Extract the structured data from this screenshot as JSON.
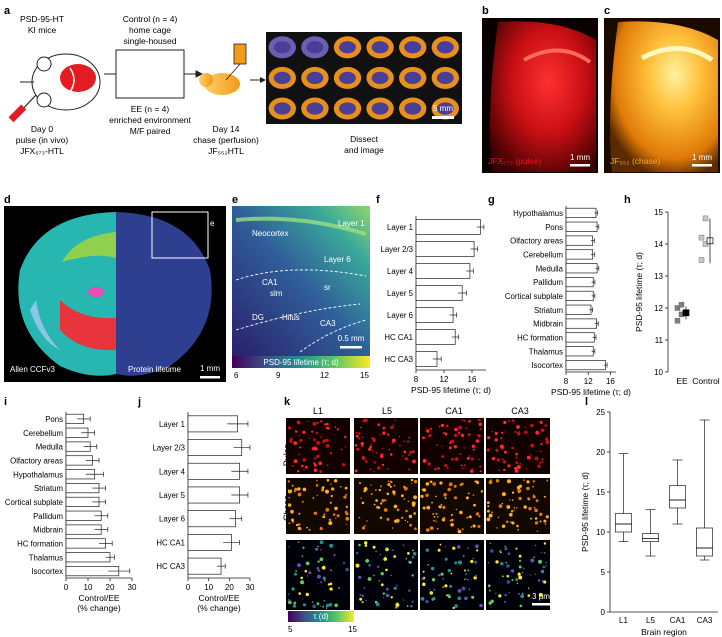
{
  "panels": {
    "a": {
      "label": "a",
      "mice": [
        "PSD-95-HT",
        "KI mice"
      ],
      "day0": [
        "Day 0",
        "pulse (in vivo)",
        "JFX₆₇₃-HTL"
      ],
      "control": [
        "Control (n = 4)",
        "home cage",
        "single-housed"
      ],
      "ee": [
        "EE (n = 4)",
        "enriched environment",
        "M/F paired"
      ],
      "day14": [
        "Day 14",
        "chase (perfusion)",
        "JF₅₅₂HTL"
      ],
      "dissect": [
        "Dissect",
        "and image"
      ],
      "scale": "5 mm"
    },
    "b": {
      "label": "b",
      "caption": "JFX₆₇₃ (pulse)",
      "scale": "1 mm"
    },
    "c": {
      "label": "c",
      "caption": "JF₅₅₂ (chase)",
      "scale": "1 mm"
    },
    "d": {
      "label": "d",
      "left": "Allen CCFv3",
      "right": "Protein lifetime",
      "scale": "1 mm",
      "inset": "e"
    },
    "e": {
      "label": "e",
      "regions": [
        "Layer 1",
        "Neocortex",
        "Layer 6",
        "CA1",
        "sr",
        "slm",
        "DG",
        "Hilus",
        "CA3"
      ],
      "scale": "0.5 mm",
      "colorbar_title": "PSD-95 lifetime (τ; d)",
      "colorbar_ticks": [
        "6",
        "9",
        "12",
        "15"
      ]
    },
    "k": {
      "label": "k",
      "cols": [
        "L1",
        "L5",
        "CA1",
        "CA3"
      ],
      "rows": [
        "Pulse",
        "Chase",
        "τ"
      ],
      "colorbar_title": "τ (d)",
      "colorbar_ticks": [
        "5",
        "15"
      ],
      "scale": "3 μm"
    }
  },
  "chart_data": [
    {
      "id": "f",
      "type": "bar",
      "orientation": "horizontal",
      "categories": [
        "Layer 1",
        "Layer 2/3",
        "Layer 4",
        "Layer 5",
        "Layer 6",
        "HC CA1",
        "HC CA3"
      ],
      "values": [
        17.2,
        16.3,
        15.7,
        14.6,
        13.3,
        13.6,
        11.0
      ],
      "errors": [
        0.5,
        0.5,
        0.5,
        0.6,
        0.5,
        0.5,
        0.6
      ],
      "xlabel": "PSD-95 lifetime (τ; d)",
      "xlim": [
        8,
        18
      ],
      "xticks": [
        "8",
        "12",
        "16"
      ]
    },
    {
      "id": "g",
      "type": "bar",
      "orientation": "horizontal",
      "categories": [
        "Hypothalamus",
        "Pons",
        "Olfactory areas",
        "Cerebellum",
        "Medulla",
        "Pallidum",
        "Cortical subplate",
        "Striatum",
        "Midbrain",
        "HC formation",
        "Thalamus",
        "Isocortex"
      ],
      "values": [
        13.4,
        13.6,
        12.8,
        12.8,
        13.6,
        12.9,
        12.9,
        12.5,
        13.5,
        13.1,
        12.9,
        15.1
      ],
      "errors": [
        0.3,
        0.3,
        0.3,
        0.3,
        0.3,
        0.3,
        0.3,
        0.3,
        0.3,
        0.3,
        0.3,
        0.3
      ],
      "xlabel": "PSD-95 lifetime (τ; d)",
      "xlim": [
        8,
        17
      ],
      "xticks": [
        "8",
        "12",
        "16"
      ]
    },
    {
      "id": "h",
      "type": "scatter",
      "categories": [
        "EE",
        "Control"
      ],
      "ylabel": "PSD-95 lifetime (τ; d)",
      "ylim": [
        10,
        15
      ],
      "yticks": [
        "10",
        "11",
        "12",
        "13",
        "14",
        "15"
      ],
      "series": [
        {
          "name": "EE",
          "points": [
            11.6,
            11.8,
            12.0,
            12.1
          ],
          "mean": 11.85,
          "error": 0.2
        },
        {
          "name": "Control",
          "points": [
            13.5,
            14.0,
            14.2,
            14.8
          ],
          "mean": 14.1,
          "error": 0.7
        }
      ]
    },
    {
      "id": "i",
      "type": "bar",
      "orientation": "horizontal",
      "categories": [
        "Pons",
        "Cerebellum",
        "Medulla",
        "Olfactory areas",
        "Hypothalamus",
        "Striatum",
        "Cortical subplate",
        "Pallidum",
        "Midbrain",
        "HC formation",
        "Thalamus",
        "Isocortex"
      ],
      "values": [
        8,
        10,
        11,
        12,
        13,
        15,
        15,
        16,
        16,
        18,
        20,
        24
      ],
      "errors": [
        3,
        3,
        3,
        3,
        4,
        3,
        3,
        3,
        3,
        3,
        2,
        5
      ],
      "xlabel": "Control/EE",
      "xlabel2": "(% change)",
      "xlim": [
        0,
        30
      ],
      "xticks": [
        "0",
        "10",
        "20",
        "30"
      ]
    },
    {
      "id": "j",
      "type": "bar",
      "orientation": "horizontal",
      "categories": [
        "Layer 1",
        "Layer 2/3",
        "Layer 4",
        "Layer 5",
        "Layer 6",
        "HC CA1",
        "HC CA3"
      ],
      "values": [
        24,
        26,
        25,
        25,
        23,
        21,
        16
      ],
      "errors": [
        5,
        4,
        4,
        4,
        3,
        4,
        2
      ],
      "xlabel": "Control/EE",
      "xlabel2": "(% change)",
      "xlim": [
        0,
        30
      ],
      "xticks": [
        "0",
        "10",
        "20",
        "30"
      ]
    },
    {
      "id": "l",
      "type": "box",
      "categories": [
        "L1",
        "L5",
        "CA1",
        "CA3"
      ],
      "xlabel": "Brain region",
      "ylabel": "PSD-95 lifetime (τ; d)",
      "ylim": [
        0,
        25
      ],
      "yticks": [
        "0",
        "5",
        "10",
        "15",
        "20",
        "25"
      ],
      "boxes": [
        {
          "min": 8.8,
          "q1": 10.0,
          "median": 11.0,
          "q3": 12.3,
          "max": 19.8
        },
        {
          "min": 7.0,
          "q1": 8.8,
          "median": 9.2,
          "q3": 9.8,
          "max": 12.8
        },
        {
          "min": 11.0,
          "q1": 13.0,
          "median": 14.0,
          "q3": 15.8,
          "max": 19.0
        },
        {
          "min": 6.5,
          "q1": 7.0,
          "median": 8.0,
          "q3": 10.5,
          "max": 24.0
        }
      ]
    }
  ],
  "colors": {
    "pulse": "#e8141c",
    "chase": "#f5a623",
    "bar_fill": "#ffffff",
    "ee_marker": "#7f7f7f",
    "control_marker": "#c8c8c8"
  }
}
